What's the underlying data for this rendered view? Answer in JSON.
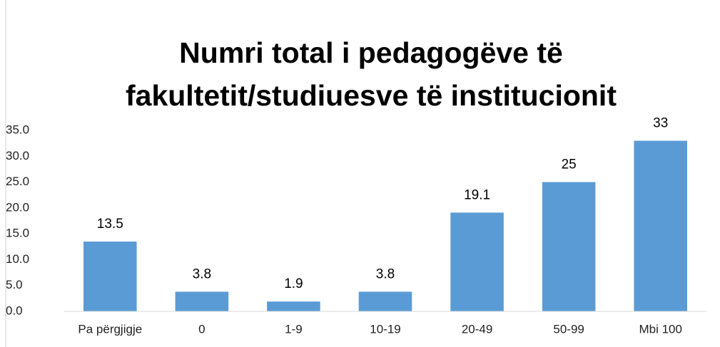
{
  "chart_data": {
    "type": "bar",
    "title": "Numri total i pedagogëve të fakultetit/studiuesve të institucionit",
    "categories": [
      "Pa përgjigje",
      "0",
      "1-9",
      "10-19",
      "20-49",
      "50-99",
      "Mbi 100"
    ],
    "values": [
      13.5,
      3.8,
      1.9,
      3.8,
      19.1,
      25,
      33
    ],
    "color": "#5b9bd5",
    "ylim": [
      0,
      35
    ],
    "yticks": [
      {
        "value": 0,
        "label": "0.0"
      },
      {
        "value": 5,
        "label": "5.0"
      },
      {
        "value": 10,
        "label": "10.0"
      },
      {
        "value": 15,
        "label": "15.0"
      },
      {
        "value": 20,
        "label": "20.0"
      },
      {
        "value": 25,
        "label": "25.0"
      },
      {
        "value": 30,
        "label": "30.0"
      },
      {
        "value": 35,
        "label": "35.0"
      }
    ],
    "grid": false
  }
}
